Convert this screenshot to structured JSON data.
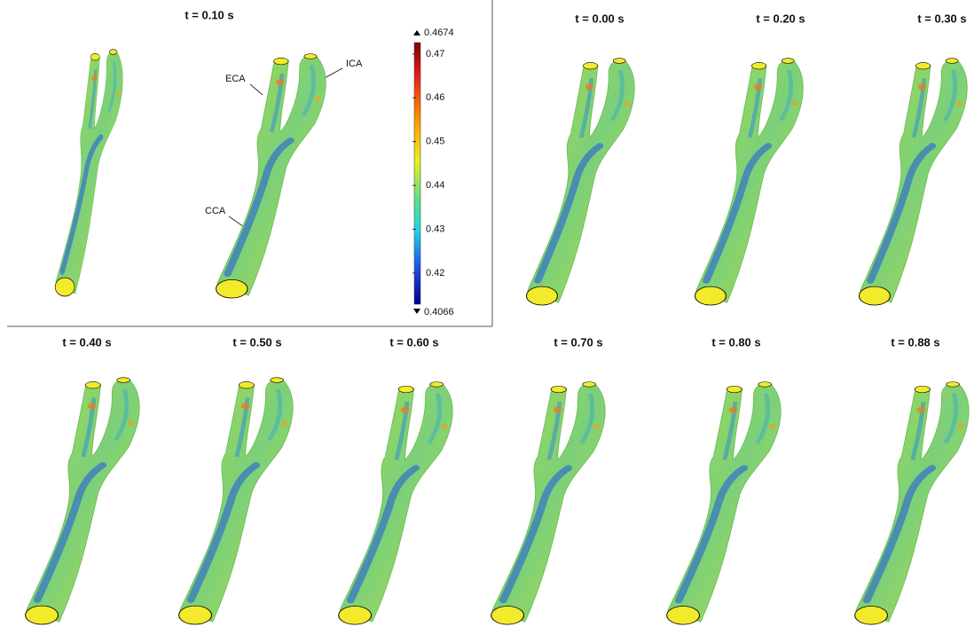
{
  "panels": [
    {
      "title": "t = 0.10 s"
    },
    {
      "title": "t = 0.00 s"
    },
    {
      "title": "t = 0.20 s"
    },
    {
      "title": "t = 0.30 s"
    },
    {
      "title": "t = 0.40 s"
    },
    {
      "title": "t = 0.50 s"
    },
    {
      "title": "t = 0.60 s"
    },
    {
      "title": "t = 0.70 s"
    },
    {
      "title": "t = 0.80 s"
    },
    {
      "title": "t = 0.88 s"
    }
  ],
  "labels": {
    "eca": "ECA",
    "ica": "ICA",
    "cca": "CCA"
  },
  "colorbar": {
    "max": 0.4674,
    "min": 0.4066,
    "ticks": [
      0.47,
      0.46,
      0.45,
      0.44,
      0.43,
      0.42
    ],
    "lim": [
      0.4129,
      0.4726
    ]
  }
}
